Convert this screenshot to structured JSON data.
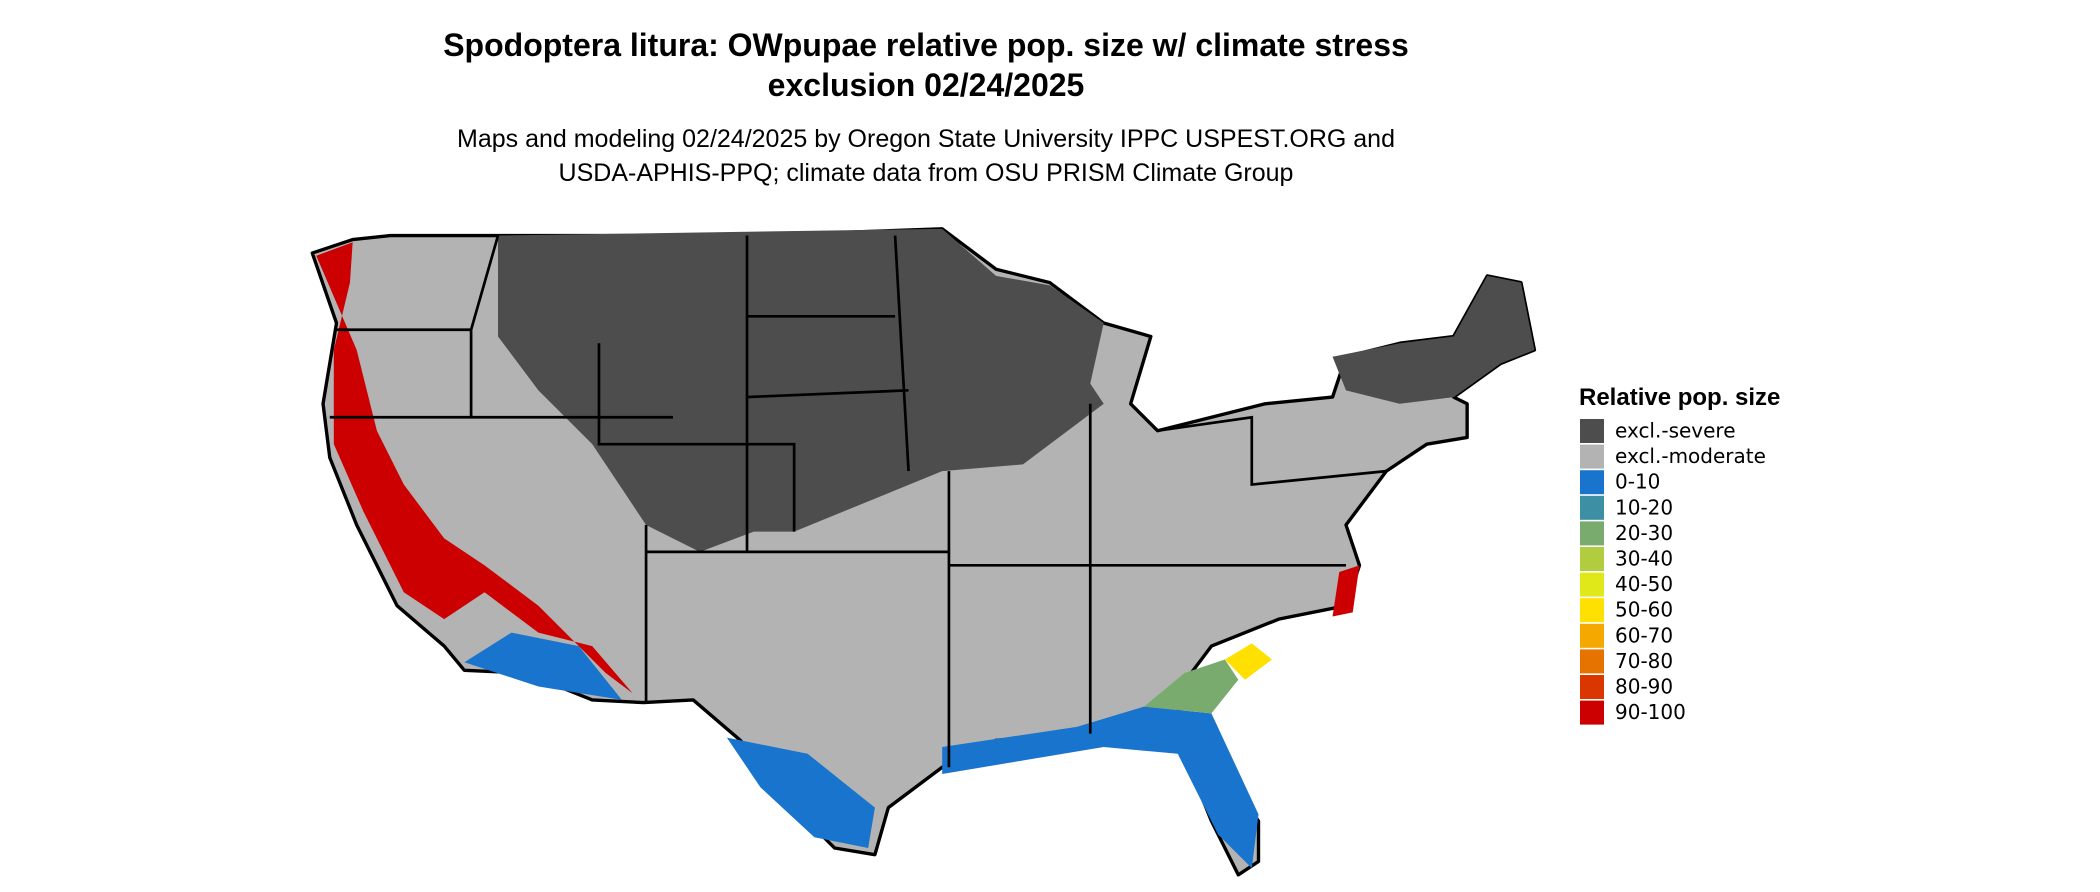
{
  "title_lines": [
    "Spodoptera litura: OWpupae relative pop. size w/ climate stress",
    "exclusion 02/24/2025"
  ],
  "subtitle_lines": [
    "Maps and modeling 02/24/2025 by Oregon State University IPPC USPEST.ORG and",
    "USDA-APHIS-PPQ; climate data from OSU PRISM Climate Group"
  ],
  "legend": {
    "title": "Relative pop. size",
    "items": [
      {
        "label": "excl.-severe",
        "color": "#4d4d4d"
      },
      {
        "label": "excl.-moderate",
        "color": "#b3b3b3"
      },
      {
        "label": "0-10",
        "color": "#1874cd"
      },
      {
        "label": "10-20",
        "color": "#3d8fa3"
      },
      {
        "label": "20-30",
        "color": "#79ab6f"
      },
      {
        "label": "30-40",
        "color": "#b2cc40"
      },
      {
        "label": "40-50",
        "color": "#e1e81a"
      },
      {
        "label": "50-60",
        "color": "#ffe000"
      },
      {
        "label": "60-70",
        "color": "#f5a800"
      },
      {
        "label": "70-80",
        "color": "#e67300"
      },
      {
        "label": "80-90",
        "color": "#d93600"
      },
      {
        "label": "90-100",
        "color": "#cc0000"
      }
    ]
  }
}
